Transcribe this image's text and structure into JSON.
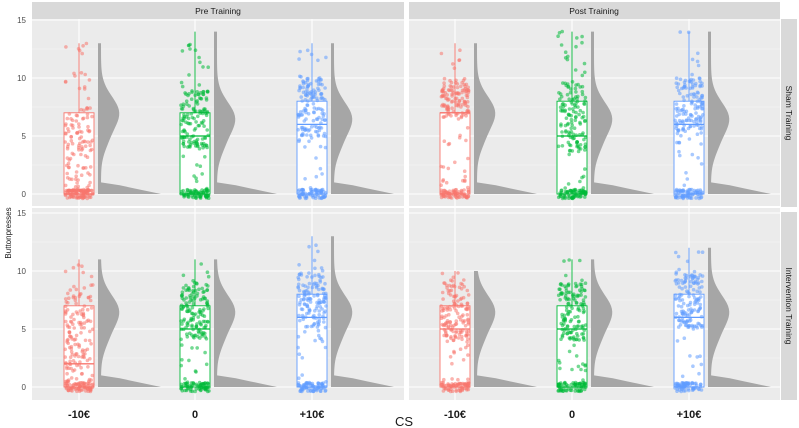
{
  "chart_data": {
    "type": "raincloud",
    "title": "",
    "xlabel": "CS",
    "ylabel": "Buttonpresses",
    "ylim": [
      -1,
      15.5
    ],
    "yticks": [
      0,
      5,
      10,
      15
    ],
    "grid": true,
    "categories": [
      "-10€",
      "0",
      "+10€"
    ],
    "colors": {
      "-10€": "#F8766D",
      "0": "#00BA38",
      "+10€": "#619CFF"
    },
    "facet_columns": [
      "Pre Training",
      "Post Training"
    ],
    "facet_rows": [
      "Sham Training",
      "Intervention Training"
    ],
    "panels": [
      {
        "row": "Sham Training",
        "col": "Pre Training",
        "boxes": [
          {
            "category": "-10€",
            "min": 0,
            "q1": 0,
            "median": 0,
            "q3": 7,
            "max": 13
          },
          {
            "category": "0",
            "min": 0,
            "q1": 0,
            "median": 5,
            "q3": 7,
            "max": 14
          },
          {
            "category": "+10€",
            "min": 0,
            "q1": 0,
            "median": 6,
            "q3": 8,
            "max": 13
          }
        ]
      },
      {
        "row": "Sham Training",
        "col": "Post Training",
        "boxes": [
          {
            "category": "-10€",
            "min": 0,
            "q1": 0,
            "median": 7,
            "q3": 7,
            "max": 13
          },
          {
            "category": "0",
            "min": 0,
            "q1": 0,
            "median": 5,
            "q3": 8,
            "max": 14
          },
          {
            "category": "+10€",
            "min": 0,
            "q1": 0,
            "median": 6,
            "q3": 8,
            "max": 14
          }
        ]
      },
      {
        "row": "Intervention Training",
        "col": "Pre Training",
        "boxes": [
          {
            "category": "-10€",
            "min": 0,
            "q1": 0,
            "median": 2,
            "q3": 7,
            "max": 11
          },
          {
            "category": "0",
            "min": 0,
            "q1": 0,
            "median": 5,
            "q3": 7,
            "max": 11
          },
          {
            "category": "+10€",
            "min": 0,
            "q1": 0,
            "median": 6,
            "q3": 8,
            "max": 13
          }
        ]
      },
      {
        "row": "Intervention Training",
        "col": "Post Training",
        "boxes": [
          {
            "category": "-10€",
            "min": 0,
            "q1": 0,
            "median": 5,
            "q3": 7,
            "max": 10
          },
          {
            "category": "0",
            "min": 0,
            "q1": 0,
            "median": 5,
            "q3": 7,
            "max": 11
          },
          {
            "category": "+10€",
            "min": 0,
            "q1": 0,
            "median": 6,
            "q3": 8,
            "max": 12
          }
        ]
      }
    ]
  },
  "labels": {
    "strip_pre": "Pre Training",
    "strip_post": "Post Training",
    "strip_sham": "Sham Training",
    "strip_intervention": "Intervention Training",
    "x_title": "CS",
    "y_title": "Buttonpresses",
    "cat_0": "-10€",
    "cat_1": "0",
    "cat_2": "+10€",
    "ytick_0": "0",
    "ytick_5": "5",
    "ytick_10": "10",
    "ytick_15": "15"
  }
}
